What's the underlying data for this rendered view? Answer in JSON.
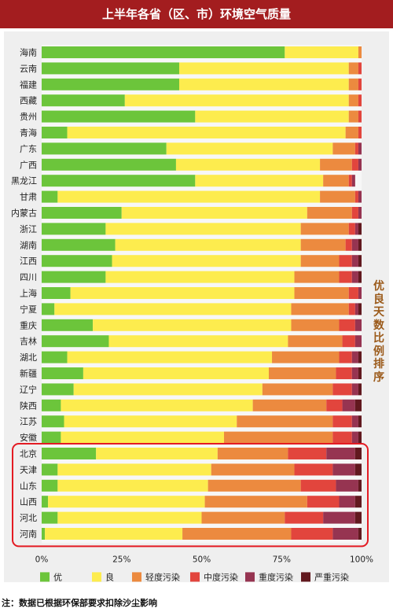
{
  "header": {
    "title": "上半年各省（区、市）环境空气质量"
  },
  "side_label": {
    "chars": [
      "优",
      "良",
      "天",
      "数",
      "比",
      "例",
      "排",
      "序"
    ]
  },
  "footnote": "注：数据已根据环保部要求扣除沙尘影响",
  "colors": {
    "优": "#6cc53b",
    "良": "#fdec4e",
    "轻度污染": "#ec8a3f",
    "中度污染": "#e2453d",
    "重度污染": "#963451",
    "严重污染": "#62191f",
    "highlight": "#e31b23"
  },
  "chart_data": {
    "type": "bar",
    "orientation": "horizontal",
    "stacked": true,
    "categories": [
      "海南",
      "云南",
      "福建",
      "西藏",
      "贵州",
      "青海",
      "广东",
      "广西",
      "黑龙江",
      "甘肃",
      "内蒙古",
      "浙江",
      "湖南",
      "江西",
      "四川",
      "上海",
      "宁夏",
      "重庆",
      "吉林",
      "湖北",
      "新疆",
      "辽宁",
      "陕西",
      "江苏",
      "安徽",
      "北京",
      "天津",
      "山东",
      "山西",
      "河北",
      "河南"
    ],
    "series": [
      {
        "name": "优",
        "values": [
          76,
          43,
          43,
          26,
          48,
          8,
          39,
          42,
          48,
          5,
          25,
          20,
          23,
          22,
          20,
          9,
          4,
          16,
          21,
          8,
          13,
          10,
          6,
          7,
          6,
          17,
          5,
          5,
          2,
          5,
          1
        ]
      },
      {
        "name": "良",
        "values": [
          23,
          53,
          53,
          70,
          48,
          87,
          52,
          45,
          40,
          82,
          58,
          61,
          58,
          59,
          59,
          70,
          74,
          62,
          56,
          64,
          58,
          59,
          60,
          54,
          51,
          38,
          48,
          47,
          49,
          45,
          43
        ]
      },
      {
        "name": "轻度污染",
        "values": [
          1,
          3,
          3,
          3,
          3,
          4,
          7,
          10,
          8,
          11,
          14,
          15,
          14,
          12,
          14,
          17,
          18,
          15,
          17,
          21,
          21,
          22,
          23,
          30,
          34,
          22,
          26,
          29,
          32,
          26,
          34
        ]
      },
      {
        "name": "中度污染",
        "values": [
          0,
          1,
          1,
          1,
          1,
          1,
          1,
          2,
          1,
          1,
          2,
          2,
          2,
          4,
          4,
          3,
          2,
          5,
          4,
          4,
          5,
          6,
          5,
          6,
          6,
          12,
          12,
          11,
          10,
          12,
          13
        ]
      },
      {
        "name": "重度污染",
        "values": [
          0,
          0,
          0,
          0,
          0,
          0,
          1,
          1,
          1,
          1,
          1,
          1,
          2,
          2,
          2,
          1,
          1,
          2,
          2,
          2,
          2,
          2,
          4,
          2,
          2,
          9,
          7,
          7,
          5,
          10,
          8
        ]
      },
      {
        "name": "严重污染",
        "values": [
          0,
          0,
          0,
          0,
          0,
          0,
          0,
          0,
          0,
          0,
          0,
          1,
          1,
          1,
          1,
          0,
          1,
          0,
          0,
          1,
          1,
          1,
          2,
          1,
          1,
          2,
          2,
          1,
          2,
          2,
          1
        ]
      }
    ],
    "xticks": [
      "0%",
      "25%",
      "50%",
      "75%",
      "100%"
    ],
    "xlim": [
      0,
      100
    ],
    "legend_position": "bottom",
    "highlighted_group": [
      "北京",
      "天津",
      "山东",
      "山西",
      "河北",
      "河南"
    ]
  }
}
